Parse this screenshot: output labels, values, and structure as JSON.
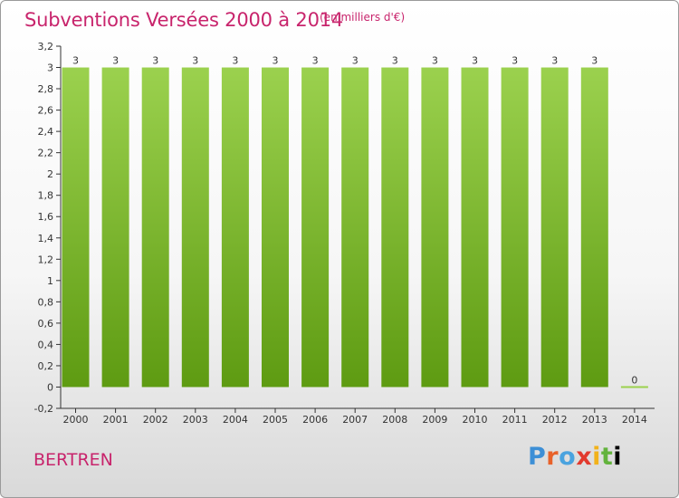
{
  "header": {
    "title": "Subventions Versées 2000 à 2014",
    "unit_note": "(en milliers d'€)"
  },
  "footer": {
    "commune": "BERTREN",
    "logo_text": "Proxiti",
    "logo_icon": "proxiti-logo"
  },
  "colors": {
    "title": "#c8246c",
    "bar_top": "#9bd14e",
    "bar_bottom": "#5e9b12"
  },
  "chart_data": {
    "type": "bar",
    "title": "Subventions Versées 2000 à 2014",
    "xlabel": "",
    "ylabel": "",
    "categories": [
      "2000",
      "2001",
      "2002",
      "2003",
      "2004",
      "2005",
      "2006",
      "2007",
      "2008",
      "2009",
      "2010",
      "2011",
      "2012",
      "2013",
      "2014"
    ],
    "values": [
      3,
      3,
      3,
      3,
      3,
      3,
      3,
      3,
      3,
      3,
      3,
      3,
      3,
      3,
      0
    ],
    "data_labels": [
      "3",
      "3",
      "3",
      "3",
      "3",
      "3",
      "3",
      "3",
      "3",
      "3",
      "3",
      "3",
      "3",
      "3",
      "0"
    ],
    "ylim": [
      -0.2,
      3.2
    ],
    "yticks": [
      "-0,2",
      "0",
      "0,2",
      "0,4",
      "0,6",
      "0,8",
      "1",
      "1,2",
      "1,4",
      "1,6",
      "1,8",
      "2",
      "2,2",
      "2,4",
      "2,6",
      "2,8",
      "3",
      "3,2"
    ],
    "ytick_values": [
      -0.2,
      0,
      0.2,
      0.4,
      0.6,
      0.8,
      1,
      1.2,
      1.4,
      1.6,
      1.8,
      2,
      2.2,
      2.4,
      2.6,
      2.8,
      3,
      3.2
    ],
    "grid": false
  }
}
